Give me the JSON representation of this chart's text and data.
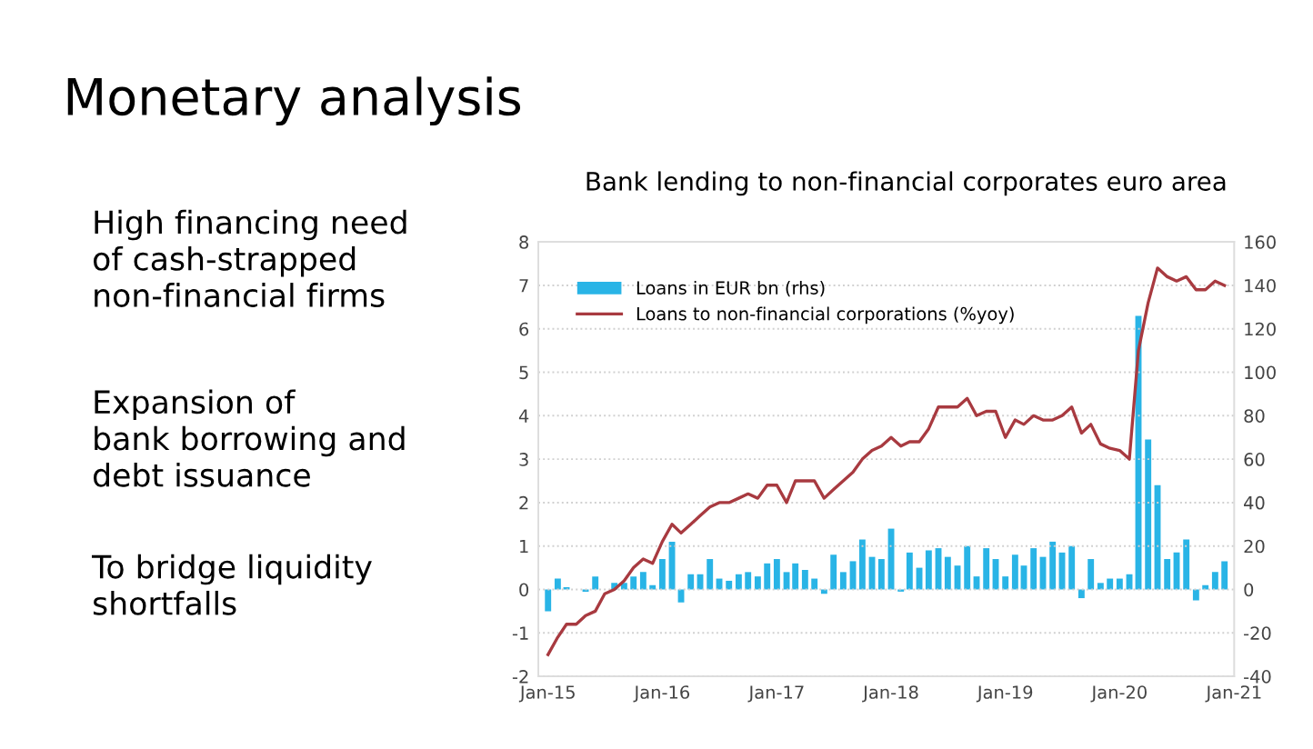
{
  "chart_data": [
    {
      "type": "other",
      "title": "Monetary analysis",
      "annotations": [
        "High financing need\nof cash-strapped\nnon-financial firms",
        "Expansion of\nbank borrowing and\ndebt issuance",
        "To bridge liquidity\nshortfalls"
      ]
    },
    {
      "type": "line",
      "title": "Bank lending to non-financial corporates euro area",
      "x": [
        "2015-01",
        "2015-02",
        "2015-03",
        "2015-04",
        "2015-05",
        "2015-06",
        "2015-07",
        "2015-08",
        "2015-09",
        "2015-10",
        "2015-11",
        "2015-12",
        "2016-01",
        "2016-02",
        "2016-03",
        "2016-04",
        "2016-05",
        "2016-06",
        "2016-07",
        "2016-08",
        "2016-09",
        "2016-10",
        "2016-11",
        "2016-12",
        "2017-01",
        "2017-02",
        "2017-03",
        "2017-04",
        "2017-05",
        "2017-06",
        "2017-07",
        "2017-08",
        "2017-09",
        "2017-10",
        "2017-11",
        "2017-12",
        "2018-01",
        "2018-02",
        "2018-03",
        "2018-04",
        "2018-05",
        "2018-06",
        "2018-07",
        "2018-08",
        "2018-09",
        "2018-10",
        "2018-11",
        "2018-12",
        "2019-01",
        "2019-02",
        "2019-03",
        "2019-04",
        "2019-05",
        "2019-06",
        "2019-07",
        "2019-08",
        "2019-09",
        "2019-10",
        "2019-11",
        "2019-12",
        "2020-01",
        "2020-02",
        "2020-03",
        "2020-04",
        "2020-05",
        "2020-06",
        "2020-07",
        "2020-08",
        "2020-09",
        "2020-10",
        "2020-11",
        "2020-12"
      ],
      "series": [
        {
          "name": "Loans in EUR bn (rhs)",
          "type": "bar",
          "axis": "y2",
          "color": "#29b4e6",
          "values": [
            -10,
            5,
            1,
            0,
            -1,
            6,
            null,
            3,
            3,
            6,
            8,
            2,
            14,
            22,
            -6,
            7,
            7,
            14,
            5,
            4,
            7,
            8,
            6,
            12,
            14,
            8,
            12,
            9,
            5,
            -2,
            16,
            8,
            13,
            23,
            15,
            14,
            28,
            -1,
            17,
            10,
            18,
            19,
            15,
            11,
            20,
            6,
            19,
            14,
            6,
            16,
            11,
            19,
            15,
            22,
            17,
            20,
            -4,
            14,
            3,
            5,
            5,
            7,
            126,
            69,
            48,
            14,
            17,
            23,
            -5,
            2,
            8,
            13
          ]
        },
        {
          "name": "Loans to non-financial corporations (%yoy)",
          "type": "line",
          "axis": "y",
          "color": "#a83a40",
          "values": [
            -1.5,
            -1.1,
            -0.8,
            -0.8,
            -0.6,
            -0.5,
            -0.1,
            0.0,
            0.2,
            0.5,
            0.7,
            0.6,
            1.1,
            1.5,
            1.3,
            1.5,
            1.7,
            1.9,
            2.0,
            2.0,
            2.1,
            2.2,
            2.1,
            2.4,
            2.4,
            2.0,
            2.5,
            2.5,
            2.5,
            2.1,
            2.3,
            2.5,
            2.7,
            3.0,
            3.2,
            3.3,
            3.5,
            3.3,
            3.4,
            3.4,
            3.7,
            4.2,
            4.2,
            4.2,
            4.4,
            4.0,
            4.1,
            4.1,
            3.5,
            3.9,
            3.8,
            4.0,
            3.9,
            3.9,
            4.0,
            4.2,
            3.6,
            3.8,
            3.35,
            3.25,
            3.2,
            3.0,
            5.5,
            6.6,
            7.4,
            7.2,
            7.1,
            7.2,
            6.9,
            6.9,
            7.1,
            7.0
          ]
        }
      ],
      "xlim": [
        "2014-12",
        "2021-01"
      ],
      "xticks": [
        {
          "value": "2015-01",
          "label": "Jan-15"
        },
        {
          "value": "2016-01",
          "label": "Jan-16"
        },
        {
          "value": "2017-01",
          "label": "Jan-17"
        },
        {
          "value": "2018-01",
          "label": "Jan-18"
        },
        {
          "value": "2019-01",
          "label": "Jan-19"
        },
        {
          "value": "2020-01",
          "label": "Jan-20"
        },
        {
          "value": "2021-01",
          "label": "Jan-21"
        }
      ],
      "ylim": [
        -2,
        8
      ],
      "yticks": [
        -2,
        -1,
        0,
        1,
        2,
        3,
        4,
        5,
        6,
        7,
        8
      ],
      "y2lim": [
        -40,
        160
      ],
      "y2ticks": [
        -40,
        -20,
        0,
        20,
        40,
        60,
        80,
        100,
        120,
        140,
        160
      ],
      "grid": "y",
      "legend": "top left"
    }
  ]
}
